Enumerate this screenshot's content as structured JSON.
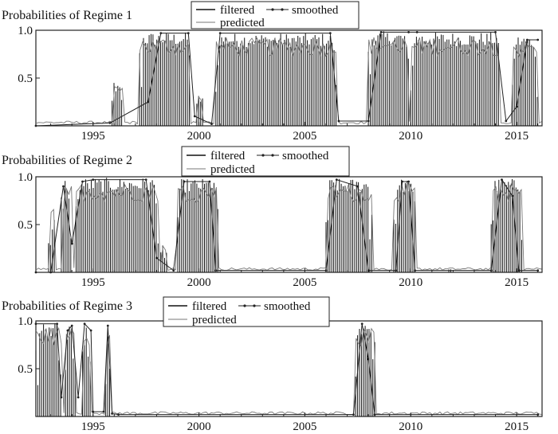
{
  "chart_data": [
    {
      "type": "line",
      "title": "Probabilities of Regime 1",
      "legend": [
        "filtered",
        "smoothed",
        "predicted"
      ],
      "legend_placement": "top-center",
      "xlim": [
        1992.3,
        2016.2
      ],
      "ylim": [
        0,
        1
      ],
      "xticks": [
        "1995",
        "2000",
        "2005",
        "2010",
        "2015"
      ],
      "yticks": [
        "0.5",
        "1.0"
      ],
      "grid": false,
      "series": [
        {
          "name": "smoothed",
          "x": [
            1992.3,
            1995.8,
            1997.6,
            1998.2,
            1999.5,
            1999.8,
            2000.6,
            2001.0,
            2006.2,
            2006.6,
            2008.0,
            2008.6,
            2009.9,
            2010.3,
            2014.0,
            2014.5,
            2015.0,
            2015.5,
            2016.0
          ],
          "y": [
            0.0,
            0.03,
            0.25,
            0.97,
            0.97,
            0.1,
            0.02,
            0.97,
            0.97,
            0.05,
            0.05,
            0.98,
            0.98,
            0.98,
            0.98,
            0.05,
            0.2,
            0.9,
            0.9
          ]
        }
      ],
      "filtered_episodes": [
        {
          "x0": 1995.9,
          "x1": 1996.4,
          "peak": 0.45
        },
        {
          "x0": 1997.2,
          "x1": 1999.6,
          "peak": 0.98
        },
        {
          "x0": 1999.9,
          "x1": 2000.2,
          "peak": 0.35
        },
        {
          "x0": 2000.8,
          "x1": 2006.5,
          "peak": 0.97
        },
        {
          "x0": 2008.0,
          "x1": 2009.9,
          "peak": 0.99
        },
        {
          "x0": 2010.0,
          "x1": 2014.2,
          "peak": 0.98
        },
        {
          "x0": 2014.8,
          "x1": 2016.0,
          "peak": 0.95
        }
      ]
    },
    {
      "type": "line",
      "title": "Probabilities of Regime 2",
      "legend": [
        "filtered",
        "smoothed",
        "predicted"
      ],
      "legend_placement": "top-center",
      "xlim": [
        1992.3,
        2016.2
      ],
      "ylim": [
        0,
        1
      ],
      "xticks": [
        "1995",
        "2000",
        "2005",
        "2010",
        "2015"
      ],
      "yticks": [
        "0.5",
        "1.0"
      ],
      "grid": false,
      "series": [
        {
          "name": "smoothed",
          "x": [
            1992.3,
            1993.0,
            1993.6,
            1994.0,
            1994.5,
            1995.0,
            1997.5,
            1998.0,
            1998.8,
            1999.3,
            2000.5,
            2000.8,
            2006.0,
            2006.5,
            2007.5,
            2008.0,
            2009.3,
            2009.6,
            2009.9,
            2010.2,
            2013.8,
            2014.3,
            2014.8,
            2015.1,
            2016.0
          ],
          "y": [
            0.0,
            0.0,
            0.9,
            0.3,
            0.95,
            0.97,
            0.97,
            0.15,
            0.02,
            0.95,
            0.95,
            0.02,
            0.02,
            0.97,
            0.9,
            0.02,
            0.02,
            0.95,
            0.95,
            0.02,
            0.02,
            0.97,
            0.8,
            0.02,
            0.02
          ]
        }
      ],
      "filtered_episodes": [
        {
          "x0": 1992.9,
          "x1": 1993.2,
          "peak": 0.7
        },
        {
          "x0": 1993.5,
          "x1": 1994.0,
          "peak": 0.98
        },
        {
          "x0": 1994.2,
          "x1": 1998.1,
          "peak": 0.99
        },
        {
          "x0": 1998.2,
          "x1": 1998.5,
          "peak": 0.3
        },
        {
          "x0": 1999.0,
          "x1": 2000.9,
          "peak": 0.98
        },
        {
          "x0": 2006.0,
          "x1": 2008.2,
          "peak": 0.98
        },
        {
          "x0": 2009.2,
          "x1": 2010.2,
          "peak": 0.98
        },
        {
          "x0": 2011.8,
          "x1": 2011.9,
          "peak": 0.05
        },
        {
          "x0": 2013.8,
          "x1": 2015.3,
          "peak": 0.98
        }
      ]
    },
    {
      "type": "line",
      "title": "Probabilities of Regime 3",
      "legend": [
        "filtered",
        "smoothed",
        "predicted"
      ],
      "legend_placement": "top-left",
      "xlim": [
        1992.3,
        2016.2
      ],
      "ylim": [
        0,
        1
      ],
      "xticks": [
        "1995",
        "2000",
        "2005",
        "2010",
        "2015"
      ],
      "yticks": [
        "0.5",
        "1.0"
      ],
      "grid": false,
      "series": [
        {
          "name": "smoothed",
          "x": [
            1992.3,
            1993.3,
            1993.5,
            1993.8,
            1994.0,
            1994.3,
            1994.6,
            1994.9,
            1995.0,
            1995.5,
            1995.7,
            1995.9,
            1996.2,
            2007.3,
            2007.7,
            2008.0,
            2008.3,
            2016.0
          ],
          "y": [
            0.97,
            0.97,
            0.2,
            0.9,
            0.95,
            0.2,
            0.97,
            0.9,
            0.05,
            0.05,
            0.95,
            0.03,
            0.02,
            0.02,
            0.97,
            0.6,
            0.02,
            0.02
          ]
        }
      ],
      "filtered_episodes": [
        {
          "x0": 1992.3,
          "x1": 1993.5,
          "peak": 0.99
        },
        {
          "x0": 1993.7,
          "x1": 1994.2,
          "peak": 0.99
        },
        {
          "x0": 1994.5,
          "x1": 1994.9,
          "peak": 0.99
        },
        {
          "x0": 1995.6,
          "x1": 1995.8,
          "peak": 0.98
        },
        {
          "x0": 2007.4,
          "x1": 2008.3,
          "peak": 0.98
        }
      ]
    }
  ]
}
